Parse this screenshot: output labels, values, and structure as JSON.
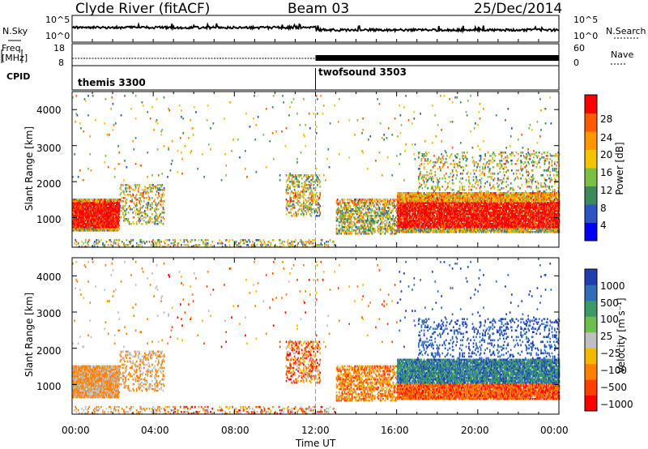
{
  "header": {
    "station": "Clyde River (fitACF)",
    "beam": "Beam 03",
    "date": "25/Dec/2014"
  },
  "side_labels": {
    "nsky": "N.Sky",
    "freq": "Freq.",
    "freq_unit": "[MHz]",
    "cpid": "CPID",
    "nsearch": "N.Search",
    "nave": "Nave"
  },
  "nsky_panel": {
    "left_ticks": [
      "10^5",
      "10^0"
    ],
    "right_ticks": [
      "10^5",
      "10^0"
    ]
  },
  "freq_panel": {
    "left_ticks": [
      "18",
      "8"
    ],
    "right_ticks": [
      "60",
      "0"
    ]
  },
  "cpid_panel": {
    "modes": [
      {
        "name": "themis 3300",
        "start_hour": 0
      },
      {
        "name": "twofsound 3503",
        "start_hour": 12
      }
    ]
  },
  "chart_data": [
    {
      "type": "heatmap",
      "panel": "power",
      "ylabel": "Slant Range [km]",
      "x_ticks": [
        "00:00",
        "04:00",
        "08:00",
        "12:00",
        "16:00",
        "20:00",
        "00:00"
      ],
      "y_ticks": [
        1000,
        2000,
        3000,
        4000
      ],
      "xlim_hours": [
        0,
        24
      ],
      "ylim_km": [
        180,
        4500
      ],
      "colorbar": {
        "label": "Power [dB]",
        "ticks": [
          "4",
          "8",
          "12",
          "16",
          "20",
          "24",
          "28"
        ],
        "colors": [
          "#0000ff",
          "#2c54c4",
          "#3c8a5a",
          "#7ac043",
          "#f5c400",
          "#ff9800",
          "#ff5a00",
          "#ff0000"
        ]
      }
    },
    {
      "type": "heatmap",
      "panel": "velocity",
      "ylabel": "Slant Range [km]",
      "xlabel": "Time UT",
      "x_ticks": [
        "00:00",
        "04:00",
        "08:00",
        "12:00",
        "16:00",
        "20:00",
        "00:00"
      ],
      "y_ticks": [
        1000,
        2000,
        3000,
        4000
      ],
      "xlim_hours": [
        0,
        24
      ],
      "ylim_km": [
        180,
        4500
      ],
      "colorbar": {
        "label": "Velocity [m s⁻¹]",
        "ticks": [
          "1000",
          "500",
          "100",
          "25",
          "−25",
          "−100",
          "−500",
          "−1000"
        ],
        "colors": [
          "#1f3fb0",
          "#2f6db8",
          "#3c9a6a",
          "#6cbf4a",
          "#bfbfbf",
          "#f5b800",
          "#ff8000",
          "#ff4000",
          "#ff0000"
        ]
      }
    }
  ]
}
